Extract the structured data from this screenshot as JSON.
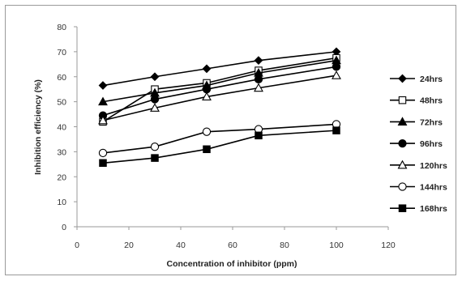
{
  "chart_data": {
    "type": "line",
    "xlabel": "Concentration of inhibitor (ppm)",
    "ylabel": "Inhibition efficiency (%)",
    "xlim": [
      0,
      120
    ],
    "ylim": [
      0,
      80
    ],
    "xticks": [
      "0",
      "20",
      "40",
      "60",
      "80",
      "100",
      "120"
    ],
    "yticks": [
      "0",
      "10",
      "20",
      "30",
      "40",
      "50",
      "60",
      "70",
      "80"
    ],
    "grid": false,
    "legend_position": "right",
    "x": [
      10,
      30,
      50,
      70,
      100
    ],
    "series": [
      {
        "name": "24hrs",
        "marker": "diamond",
        "values": [
          56.5,
          60.0,
          63.2,
          66.5,
          70.0
        ]
      },
      {
        "name": "48hrs",
        "marker": "square-open",
        "values": [
          42.0,
          55.0,
          57.5,
          62.5,
          67.5
        ]
      },
      {
        "name": "72hrs",
        "marker": "triangle-filled",
        "values": [
          50.0,
          53.5,
          56.5,
          61.5,
          66.5
        ]
      },
      {
        "name": "96hrs",
        "marker": "circle-filled",
        "values": [
          44.5,
          51.0,
          55.0,
          59.0,
          64.0
        ]
      },
      {
        "name": "120hrs",
        "marker": "triangle-open",
        "values": [
          42.5,
          47.5,
          52.0,
          55.5,
          60.5
        ]
      },
      {
        "name": "144hrs",
        "marker": "circle-open",
        "values": [
          29.5,
          32.0,
          38.0,
          39.0,
          41.0
        ]
      },
      {
        "name": "168hrs",
        "marker": "square-filled",
        "values": [
          25.5,
          27.5,
          31.0,
          36.5,
          38.5
        ]
      }
    ],
    "colors": {
      "line": "#000000",
      "axis": "#9a9a9a"
    }
  }
}
